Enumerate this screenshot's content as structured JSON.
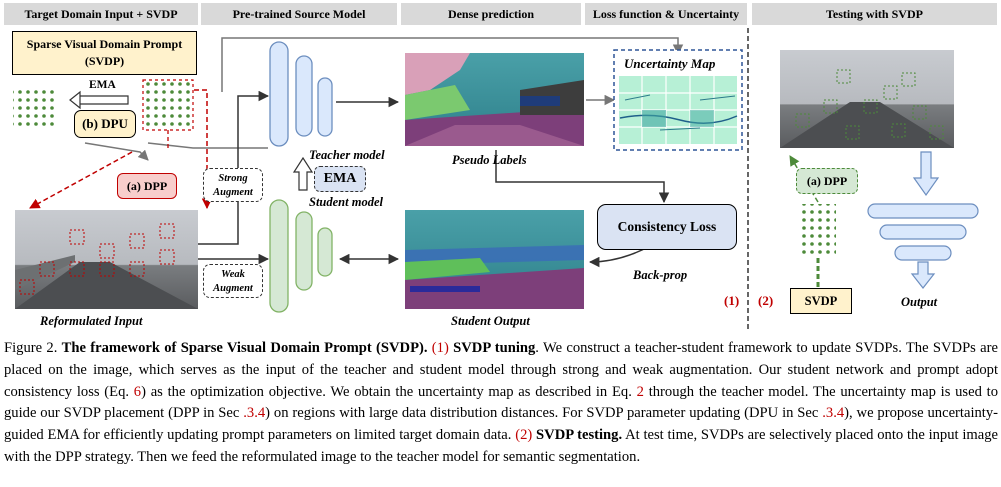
{
  "headers": {
    "target_input": "Target Domain Input + SVDP",
    "source_model": "Pre-trained Source Model",
    "dense_prediction": "Dense prediction",
    "loss_uncertainty": "Loss function & Uncertainty",
    "testing": "Testing with SVDP"
  },
  "svdp_box": {
    "line1": "Sparse Visual Domain Prompt",
    "line2": "(SVDP)"
  },
  "ema_arrow_label": "EMA",
  "dpu_label": "(b) DPU",
  "dpp_label": "(a) DPP",
  "strong_augment": {
    "line1": "Strong",
    "line2": "Augment"
  },
  "weak_augment": {
    "line1": "Weak",
    "line2": "Augment"
  },
  "teacher_model_label": "Teacher model",
  "student_model_label": "Student model",
  "ema_box_label": "EMA",
  "pseudo_labels_label": "Pseudo  Labels",
  "student_output_label": "Student Output",
  "reformulated_input_label": "Reformulated Input",
  "uncertainty_map_label": "Uncertainty Map",
  "consistency_loss_label": "Consistency Loss",
  "backprop_label": "Back-prop",
  "section_markers": {
    "one": "(1)",
    "two": "(2)"
  },
  "testing": {
    "dpp_label": "(a) DPP",
    "svdp_label": "SVDP",
    "output_label": "Output"
  },
  "colors": {
    "header_bg": "#d9d9d9",
    "svdp_fill": "#fff2cc",
    "dpp_fill": "#f8cecc",
    "dpp_red": "#c00000",
    "teacher_fill": "#dae8fc",
    "teacher_stroke": "#6c8ebf",
    "student_fill": "#d5e8d4",
    "student_stroke": "#82b366",
    "prompt_green": "#4d8a3a",
    "loss_fill": "#dae3f3"
  },
  "caption": {
    "fig": "Figure 2.",
    "title": "The framework of Sparse Visual Domain Prompt (SVDP).",
    "part1_num": "(1)",
    "part1_title": "SVDP tuning",
    "part1_text": ". We construct a teacher-student framework to update SVDPs. The SVDPs are placed on the image, which serves as the input of the teacher and student model through strong and weak augmentation. Our student network and prompt adopt consistency loss (Eq.",
    "eq6": "6",
    "part1_text2": ") as the optimization objective. We obtain the uncertainty map as described in Eq.",
    "eq2": "2",
    "part1_text3": "through the teacher model. The uncertainty map is used to guide our SVDP placement (DPP in Sec",
    "sec34a": ".3.4",
    "part1_text4": ") on regions with large data distribution distances. For SVDP parameter updating (DPU in Sec",
    "sec34b": ".3.4",
    "part1_text5": "), we propose uncertainty-guided EMA for efficiently updating prompt parameters on limited target domain data.",
    "part2_num": "(2)",
    "part2_title": "SVDP testing.",
    "part2_text": "At test time, SVDPs are selectively placed onto the input image with the DPP strategy. Then we feed the reformulated image to the teacher model for semantic segmentation."
  }
}
